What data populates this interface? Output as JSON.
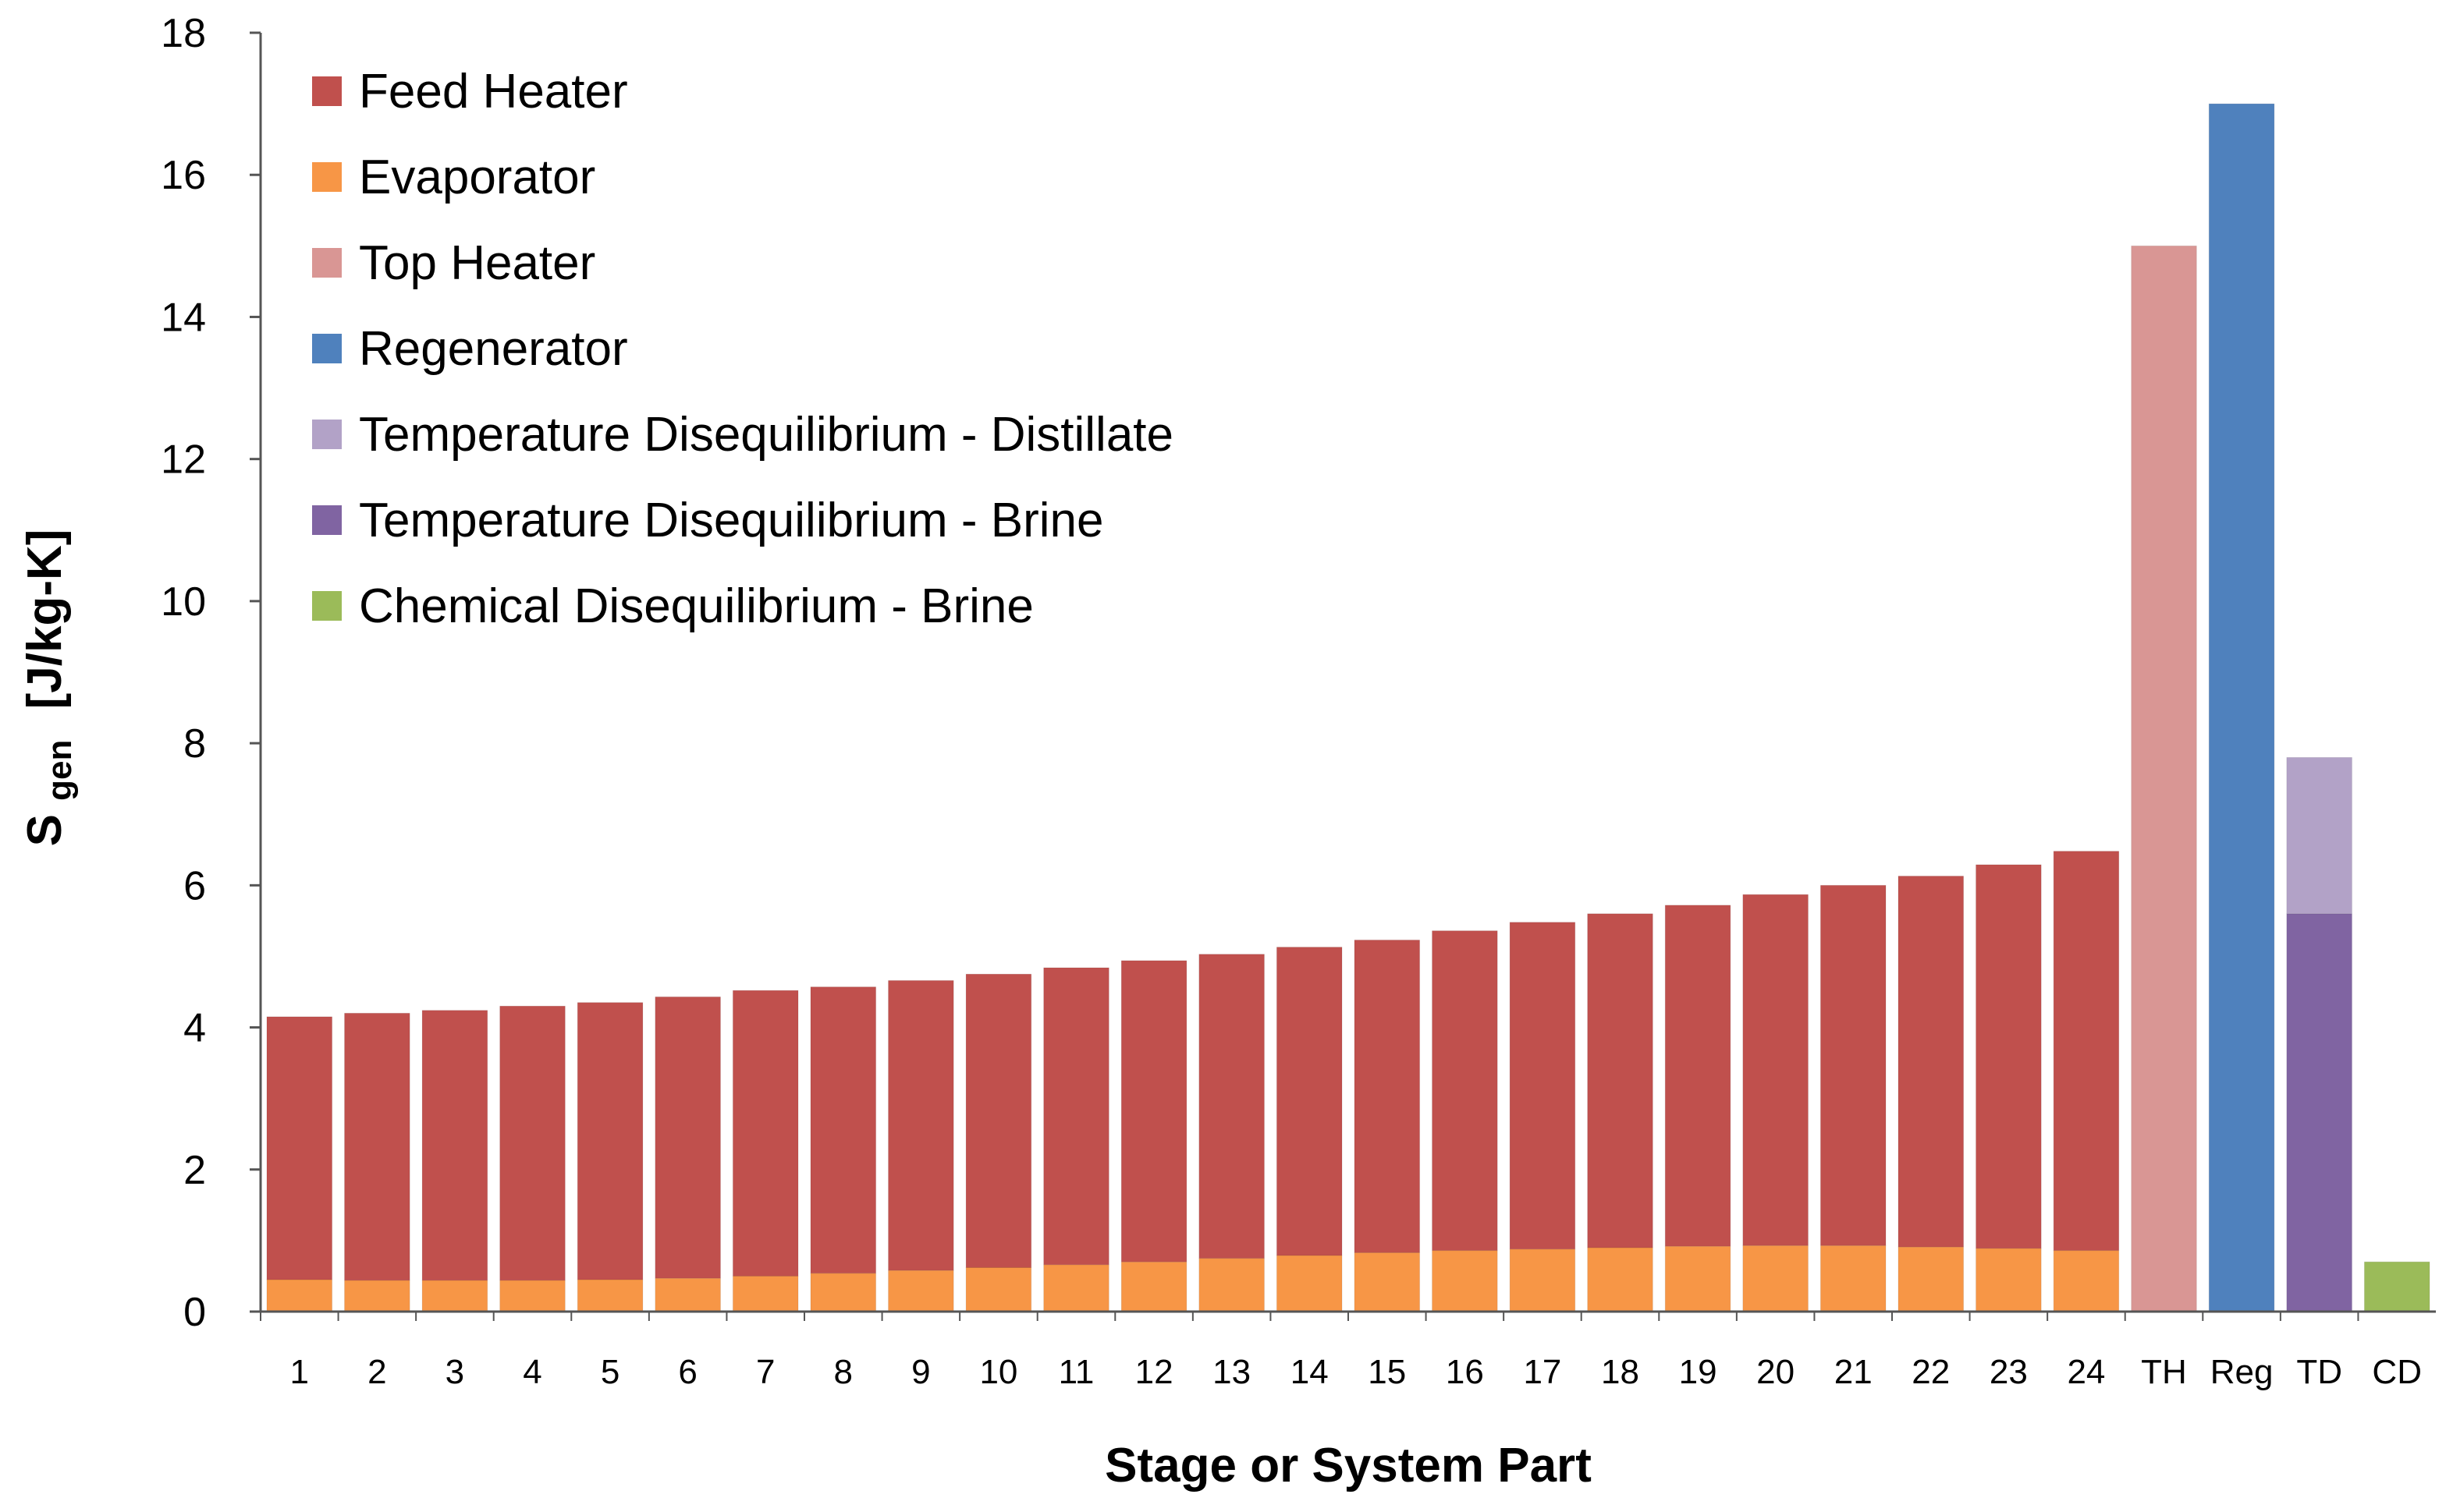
{
  "chart_data": {
    "type": "bar",
    "stacked": true,
    "title": "",
    "xlabel": "Stage or System Part",
    "ylabel": {
      "main": "S",
      "subscript": "gen",
      "units": "[J/kg-K]"
    },
    "ylim": [
      0,
      18
    ],
    "yticks": [
      0,
      2,
      4,
      6,
      8,
      10,
      12,
      14,
      16,
      18
    ],
    "grid": false,
    "legend_position": "top-left",
    "categories": [
      "1",
      "2",
      "3",
      "4",
      "5",
      "6",
      "7",
      "8",
      "9",
      "10",
      "11",
      "12",
      "13",
      "14",
      "15",
      "16",
      "17",
      "18",
      "19",
      "20",
      "21",
      "22",
      "23",
      "24",
      "TH",
      "Reg",
      "TD",
      "CD"
    ],
    "series": [
      {
        "name": "Evaporator",
        "color": "#f79646",
        "values": [
          0.45,
          0.44,
          0.44,
          0.44,
          0.45,
          0.47,
          0.5,
          0.54,
          0.58,
          0.62,
          0.66,
          0.7,
          0.75,
          0.79,
          0.83,
          0.86,
          0.88,
          0.9,
          0.92,
          0.93,
          0.93,
          0.91,
          0.89,
          0.86,
          0,
          0,
          0,
          0
        ]
      },
      {
        "name": "Feed Heater",
        "color": "#c0504d",
        "values": [
          3.7,
          3.76,
          3.8,
          3.86,
          3.9,
          3.96,
          4.02,
          4.03,
          4.08,
          4.13,
          4.18,
          4.24,
          4.28,
          4.34,
          4.4,
          4.5,
          4.6,
          4.7,
          4.8,
          4.94,
          5.07,
          5.22,
          5.4,
          5.62,
          0,
          0,
          0,
          0
        ]
      },
      {
        "name": "Top Heater",
        "color": "#d99694",
        "values": [
          0,
          0,
          0,
          0,
          0,
          0,
          0,
          0,
          0,
          0,
          0,
          0,
          0,
          0,
          0,
          0,
          0,
          0,
          0,
          0,
          0,
          0,
          0,
          0,
          15.0,
          0,
          0,
          0
        ]
      },
      {
        "name": "Regenerator",
        "color": "#4f81bd",
        "values": [
          0,
          0,
          0,
          0,
          0,
          0,
          0,
          0,
          0,
          0,
          0,
          0,
          0,
          0,
          0,
          0,
          0,
          0,
          0,
          0,
          0,
          0,
          0,
          0,
          0,
          17.0,
          0,
          0
        ]
      },
      {
        "name": "Temperature Disequilibrium - Brine",
        "color": "#8064a2",
        "values": [
          0,
          0,
          0,
          0,
          0,
          0,
          0,
          0,
          0,
          0,
          0,
          0,
          0,
          0,
          0,
          0,
          0,
          0,
          0,
          0,
          0,
          0,
          0,
          0,
          0,
          0,
          5.6,
          0
        ]
      },
      {
        "name": "Temperature Disequilibrium - Distillate",
        "color": "#b2a2c7",
        "values": [
          0,
          0,
          0,
          0,
          0,
          0,
          0,
          0,
          0,
          0,
          0,
          0,
          0,
          0,
          0,
          0,
          0,
          0,
          0,
          0,
          0,
          0,
          0,
          0,
          0,
          0,
          2.2,
          0
        ]
      },
      {
        "name": "Chemical Disequilibrium - Brine",
        "color": "#9bbb59",
        "values": [
          0,
          0,
          0,
          0,
          0,
          0,
          0,
          0,
          0,
          0,
          0,
          0,
          0,
          0,
          0,
          0,
          0,
          0,
          0,
          0,
          0,
          0,
          0,
          0,
          0,
          0,
          0,
          0.7
        ]
      }
    ],
    "legend_order": [
      "Feed Heater",
      "Evaporator",
      "Top Heater",
      "Regenerator",
      "Temperature Disequilibrium - Distillate",
      "Temperature Disequilibrium - Brine",
      "Chemical Disequilibrium - Brine"
    ]
  }
}
